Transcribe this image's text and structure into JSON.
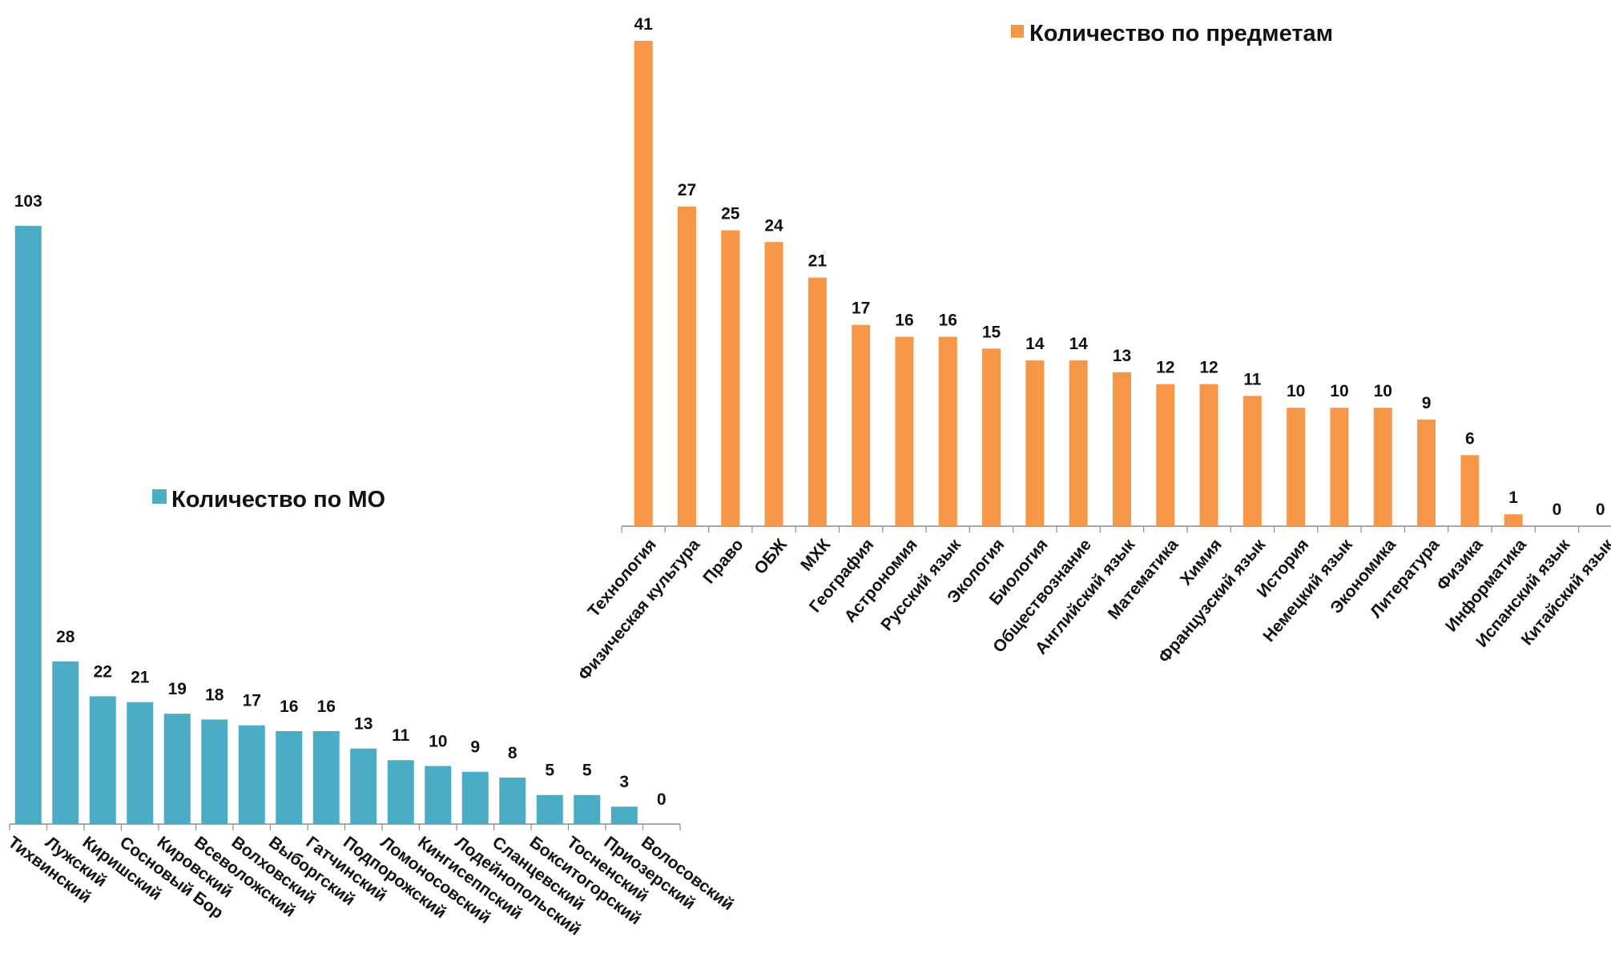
{
  "chart_data": [
    {
      "type": "bar",
      "series": [
        {
          "name": "Количество по МО",
          "color": "#4bacc6",
          "categories": [
            "Тихвинский",
            "Лужский",
            "Киришский",
            "Сосновый Бор",
            "Кировский",
            "Всеволожский",
            "Волховский",
            "Выборгский",
            "Гатчинский",
            "Подпорожский",
            "Ломоносовский",
            "Кингисеппский",
            "Лодейнопольский",
            "Сланцевский",
            "Бокситогорский",
            "Тосненский",
            "Приозерский",
            "Волосовский"
          ],
          "values": [
            103,
            28,
            22,
            21,
            19,
            18,
            17,
            16,
            16,
            13,
            11,
            10,
            9,
            8,
            5,
            5,
            3,
            0
          ]
        }
      ],
      "legend_position": "right-middle",
      "grid": false,
      "ylim": [
        0,
        103
      ]
    },
    {
      "type": "bar",
      "series": [
        {
          "name": "Количество по предметам",
          "color": "#f79646",
          "categories": [
            "Технология",
            "Физическая культура",
            "Право",
            "ОБЖ",
            "МХК",
            "География",
            "Астрономия",
            "Русский язык",
            "Экология",
            "Биология",
            "Обществознание",
            "Английский язык",
            "Математика",
            "Химия",
            "Французский язык",
            "История",
            "Немецкий язык",
            "Экономика",
            "Литература",
            "Физика",
            "Информатика",
            "Испанский язык",
            "Китайский язык"
          ],
          "values": [
            41,
            27,
            25,
            24,
            21,
            17,
            16,
            16,
            15,
            14,
            14,
            13,
            12,
            12,
            11,
            10,
            10,
            10,
            9,
            6,
            1,
            0,
            0
          ]
        }
      ],
      "legend_position": "top-right",
      "grid": false,
      "ylim": [
        0,
        41
      ]
    }
  ]
}
